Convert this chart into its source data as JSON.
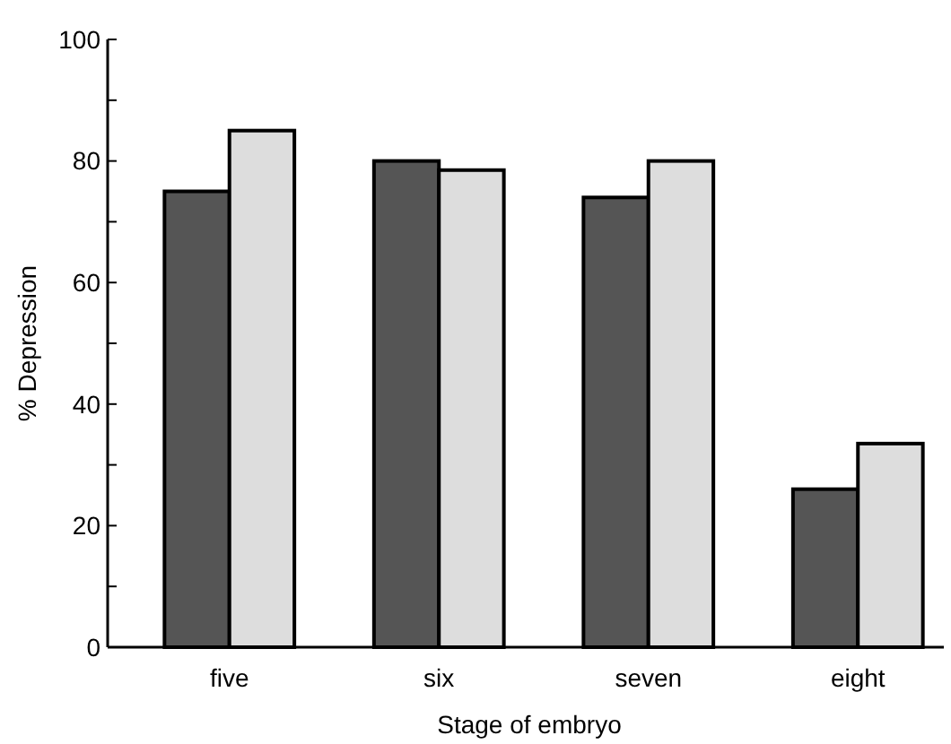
{
  "chart_data": {
    "type": "bar",
    "xlabel": "Stage of embryo",
    "ylabel": "% Depression",
    "categories": [
      "five",
      "six",
      "seven",
      "eight"
    ],
    "series": [
      {
        "color": "#555555",
        "values": [
          75,
          80,
          74,
          26
        ]
      },
      {
        "color": "#dddddd",
        "values": [
          85,
          78.5,
          80,
          33.5
        ]
      }
    ],
    "ylim": [
      0,
      100
    ],
    "yticks": [
      0,
      {
        "value": 10,
        "label": null
      },
      20,
      {
        "value": 30,
        "label": null
      },
      40,
      {
        "value": 50,
        "label": null
      },
      60,
      {
        "value": 70,
        "label": null
      },
      80,
      {
        "value": 90,
        "label": null
      },
      100
    ]
  }
}
